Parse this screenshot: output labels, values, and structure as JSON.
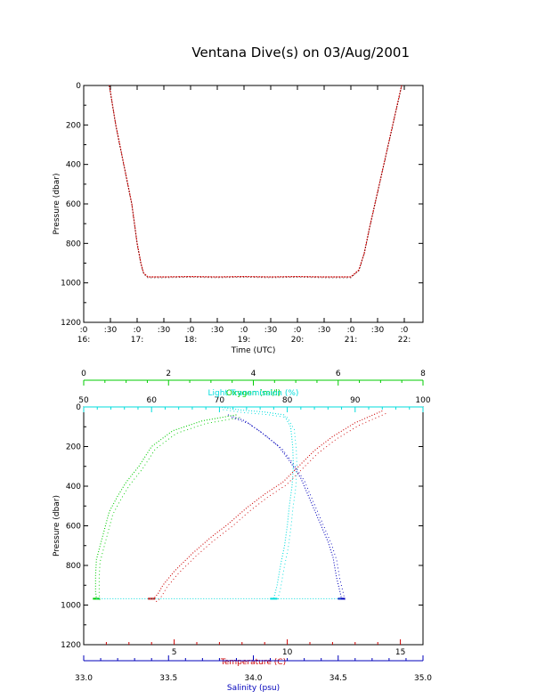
{
  "title": "Ventana Dive(s) on 03/Aug/2001",
  "colors": {
    "temperature": "#cc0000",
    "salinity": "#0000bb",
    "oxygen": "#00cc00",
    "transmission": "#00dddd",
    "depth_trace": "#cc0000"
  },
  "chart_data": [
    {
      "type": "line",
      "title": "Ventana Dive(s) on 03/Aug/2001",
      "xlabel": "Time (UTC)",
      "ylabel": "Pressure (dbar)",
      "x_unit": "hours UTC",
      "xlim": [
        16.0,
        22.35
      ],
      "ylim": [
        1200,
        0
      ],
      "y_reversed": true,
      "y_ticks": [
        "0",
        "200",
        "400",
        "600",
        "800",
        "1000",
        "1200"
      ],
      "x_ticks": [
        {
          "minute": ":0",
          "hour": "16:"
        },
        {
          "minute": ":30",
          "hour": ""
        },
        {
          "minute": ":0",
          "hour": "17:"
        },
        {
          "minute": ":30",
          "hour": ""
        },
        {
          "minute": ":0",
          "hour": "18:"
        },
        {
          "minute": ":30",
          "hour": ""
        },
        {
          "minute": ":0",
          "hour": "19:"
        },
        {
          "minute": ":30",
          "hour": ""
        },
        {
          "minute": ":0",
          "hour": "20:"
        },
        {
          "minute": ":30",
          "hour": ""
        },
        {
          "minute": ":0",
          "hour": "21:"
        },
        {
          "minute": ":30",
          "hour": ""
        },
        {
          "minute": ":0",
          "hour": "22:"
        }
      ],
      "series": [
        {
          "x": [
            16.48,
            16.6,
            16.75,
            16.9,
            17.0,
            17.07,
            17.12,
            17.2,
            17.5,
            18.0,
            18.5,
            19.0,
            19.5,
            20.0,
            20.5,
            21.0,
            21.15,
            21.25,
            21.35,
            21.5,
            21.65,
            21.8,
            21.95
          ],
          "y": [
            0,
            200,
            400,
            600,
            800,
            900,
            950,
            970,
            970,
            968,
            970,
            968,
            970,
            968,
            970,
            970,
            935,
            850,
            720,
            540,
            360,
            180,
            0
          ]
        }
      ]
    },
    {
      "type": "scatter",
      "ylabel": "Pressure (dbar)",
      "ylim": [
        1200,
        0
      ],
      "y_reversed": true,
      "y_ticks": [
        "0",
        "200",
        "400",
        "600",
        "800",
        "1000",
        "1200"
      ],
      "axes": [
        {
          "name": "Temperature (C)",
          "position": "bottom",
          "range": [
            1.0,
            16.0
          ],
          "ticks": [
            "5",
            "10",
            "15"
          ]
        },
        {
          "name": "Salinity (psu)",
          "position": "bottom",
          "range": [
            33.0,
            35.0
          ],
          "ticks": [
            "33.0",
            "33.5",
            "34.0",
            "34.5",
            "35.0"
          ]
        },
        {
          "name": "Oxygen (ml/l)",
          "position": "top",
          "range": [
            0,
            8
          ],
          "ticks": [
            "0",
            "2",
            "4",
            "6",
            "8"
          ]
        },
        {
          "name": "Light Transmission (%)",
          "position": "top",
          "range": [
            50,
            100
          ],
          "ticks": [
            "50",
            "60",
            "70",
            "80",
            "90",
            "100"
          ]
        }
      ],
      "series": [
        {
          "axis": "Temperature (C)",
          "x": [
            14.2,
            13.0,
            12.0,
            11.2,
            10.5,
            9.8,
            9.0,
            8.2,
            7.4,
            6.6,
            5.8,
            5.0,
            4.5,
            4.3,
            4.1,
            4.0
          ],
          "y": [
            20,
            80,
            150,
            220,
            300,
            380,
            440,
            510,
            590,
            660,
            740,
            830,
            900,
            940,
            968,
            968
          ]
        },
        {
          "axis": "Salinity (psu)",
          "x": [
            33.85,
            33.95,
            34.05,
            34.15,
            34.22,
            34.28,
            34.32,
            34.36,
            34.4,
            34.44,
            34.47,
            34.49,
            34.51,
            34.52
          ],
          "y": [
            40,
            70,
            130,
            200,
            280,
            360,
            440,
            520,
            600,
            680,
            760,
            860,
            930,
            968
          ]
        },
        {
          "axis": "Oxygen (ml/l)",
          "x": [
            3.6,
            2.8,
            2.1,
            1.6,
            1.3,
            1.0,
            0.8,
            0.6,
            0.5,
            0.4,
            0.3,
            0.28,
            0.28,
            0.3
          ],
          "y": [
            40,
            70,
            120,
            200,
            300,
            380,
            450,
            530,
            610,
            690,
            770,
            850,
            930,
            968
          ]
        },
        {
          "axis": "Light Transmission (%)",
          "x": [
            70.0,
            73.0,
            76.5,
            79.5,
            80.5,
            80.8,
            80.9,
            80.7,
            80.3,
            80.0,
            79.6,
            79.0,
            78.5,
            78.0
          ],
          "y": [
            0,
            15,
            25,
            40,
            100,
            200,
            300,
            400,
            500,
            600,
            700,
            800,
            900,
            968
          ]
        }
      ]
    }
  ]
}
